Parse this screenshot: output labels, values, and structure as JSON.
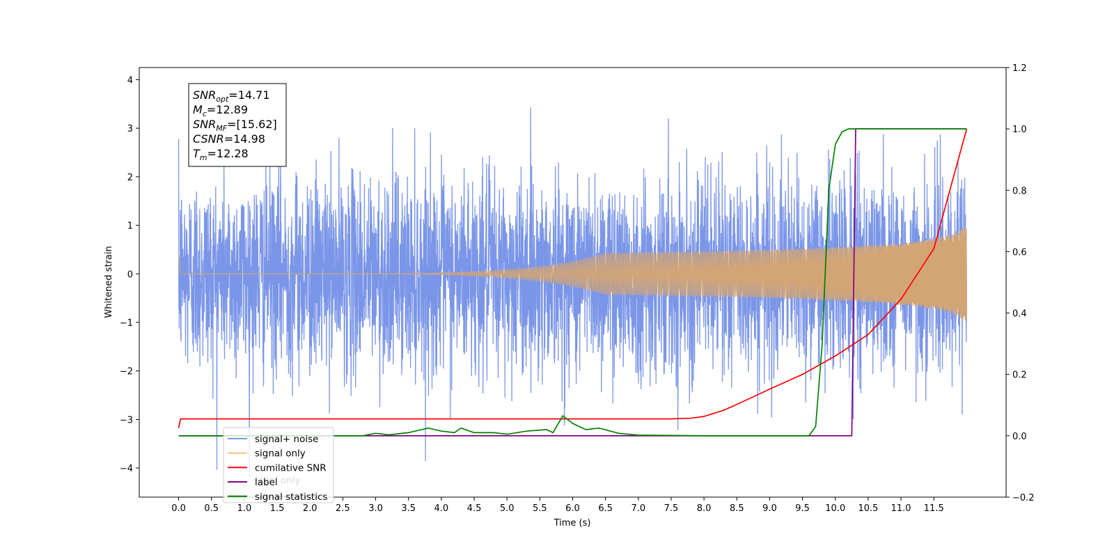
{
  "chart_data": {
    "type": "line",
    "xlabel": "Time (s)",
    "ylabel": "Whitened strain",
    "xlim": [
      -0.6,
      12.6
    ],
    "ylim": [
      -4.6,
      4.25
    ],
    "y2lim": [
      -0.2,
      1.2
    ],
    "x_ticks": [
      "0.0",
      "0.5",
      "1.0",
      "1.5",
      "2.0",
      "2.5",
      "3.0",
      "3.5",
      "4.0",
      "4.5",
      "5.0",
      "5.5",
      "6.0",
      "6.5",
      "7.0",
      "7.5",
      "8.0",
      "8.5",
      "9.0",
      "9.5",
      "10.0",
      "10.5",
      "11.0",
      "11.5"
    ],
    "y_ticks": [
      4,
      3,
      2,
      1,
      0,
      -1,
      -2,
      -3,
      -4
    ],
    "y_tick_labels": [
      "4",
      "3",
      "2",
      "1",
      "0",
      "−1",
      "−2",
      "−3",
      "−4"
    ],
    "y2_ticks": [
      "1.2",
      "1.0",
      "0.8",
      "0.6",
      "0.4",
      "0.2",
      "0.0",
      "−0.2"
    ],
    "annotation": [
      {
        "base": "SNR",
        "sub": "opt",
        "rest": "=14.71"
      },
      {
        "base": "M",
        "sub": "c",
        "rest": "=12.89"
      },
      {
        "base": "SNR",
        "sub": "MF",
        "rest": "=[15.62]"
      },
      {
        "base": "CSNR",
        "sub": "",
        "rest": "=14.98"
      },
      {
        "base": "T",
        "sub": "m",
        "rest": "=12.28"
      }
    ],
    "legend": {
      "placement": "lower-left",
      "entries": [
        {
          "label": "signal+ noise",
          "color": "#7b96e8"
        },
        {
          "label": "signal only",
          "color": "#f7c27a"
        },
        {
          "label": "cumilative SNR",
          "color": "#ff0000"
        },
        {
          "label": "label",
          "color": "#800080"
        },
        {
          "label": "signal statistics",
          "color": "#008000"
        }
      ],
      "occluded_text": "label only"
    },
    "series": [
      {
        "name": "signal+ noise",
        "axis": "left",
        "color": "#7b96e8",
        "x_range": [
          0.0,
          12.0
        ],
        "std_approx": 1.0
      },
      {
        "name": "signal only",
        "axis": "left",
        "color": "#d4a574",
        "x_range": [
          0.0,
          12.0
        ],
        "amplitude_end": 1.0
      },
      {
        "name": "cumilative SNR",
        "axis": "right",
        "color": "#ff0000",
        "x": [
          0.0,
          0.03,
          7.5,
          7.8,
          8.0,
          8.3,
          8.6,
          9.0,
          9.5,
          10.0,
          10.5,
          11.0,
          11.5,
          12.0
        ],
        "y": [
          0.025,
          0.055,
          0.055,
          0.057,
          0.063,
          0.083,
          0.112,
          0.152,
          0.2,
          0.26,
          0.33,
          0.445,
          0.61,
          1.0
        ]
      },
      {
        "name": "label",
        "axis": "right",
        "color": "#800080",
        "x": [
          0.0,
          10.25,
          10.25,
          10.31,
          10.31,
          12.0
        ],
        "y": [
          0.0,
          0.0,
          0.0,
          1.0,
          1.0,
          1.0
        ]
      },
      {
        "name": "signal statistics",
        "axis": "right",
        "color": "#008000",
        "x": [
          0.0,
          2.8,
          3.0,
          3.2,
          3.5,
          3.8,
          4.0,
          4.2,
          4.3,
          4.5,
          4.8,
          5.0,
          5.3,
          5.6,
          5.7,
          5.85,
          6.0,
          6.2,
          6.4,
          6.7,
          7.0,
          8.0,
          9.6,
          9.7,
          9.8,
          9.9,
          10.0,
          10.1,
          10.2,
          10.35,
          12.0
        ],
        "y": [
          0.0,
          0.0,
          0.008,
          0.003,
          0.01,
          0.025,
          0.015,
          0.01,
          0.025,
          0.01,
          0.01,
          0.005,
          0.015,
          0.02,
          0.01,
          0.065,
          0.04,
          0.02,
          0.025,
          0.008,
          0.002,
          0.0,
          0.0,
          0.03,
          0.3,
          0.8,
          0.95,
          0.99,
          1.0,
          1.0,
          1.0
        ]
      }
    ]
  }
}
